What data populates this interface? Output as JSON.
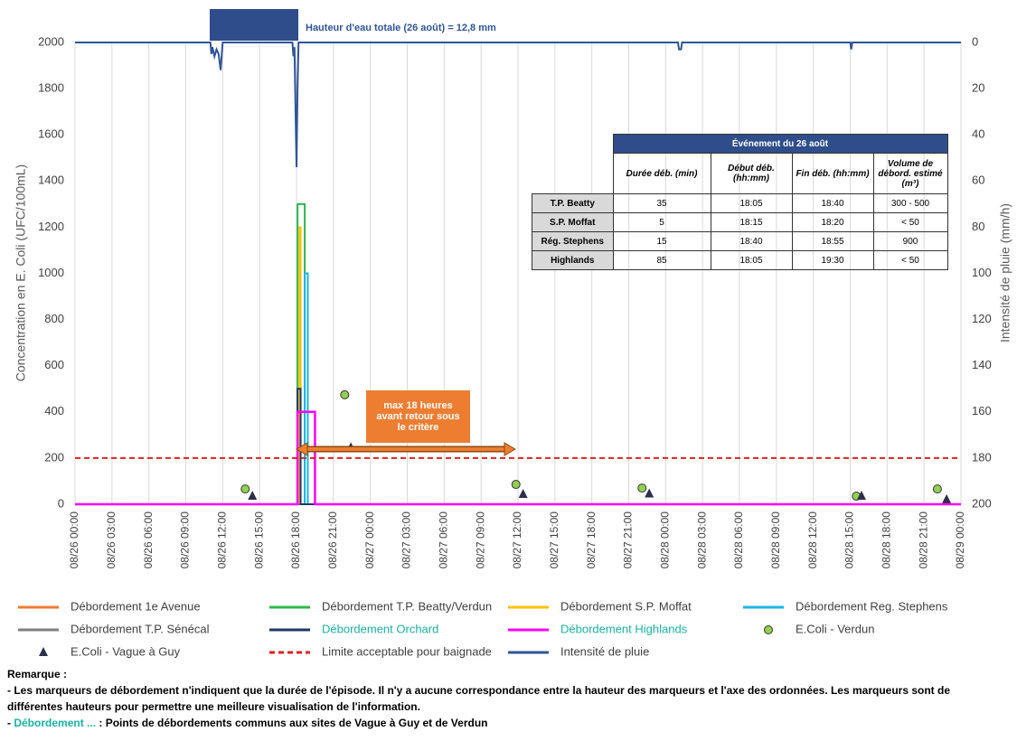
{
  "chart_data": {
    "type": "line",
    "annotation": "Hauteur d'eau totale (26 août) = 12,8 mm",
    "callout": "max 18 heures avant retour sous le critère",
    "y_label": "Concentration en E. Coli (UFC/100mL)",
    "y2_label": "Intensité de pluie (mm/h)",
    "xlim": [
      "08/26 00:00",
      "08/29 00:00"
    ],
    "xticks": [
      "08/26 00:00",
      "08/26 03:00",
      "08/26 06:00",
      "08/26 09:00",
      "08/26 12:00",
      "08/26 15:00",
      "08/26 18:00",
      "08/26 21:00",
      "08/27 00:00",
      "08/27 03:00",
      "08/27 06:00",
      "08/27 09:00",
      "08/27 12:00",
      "08/27 15:00",
      "08/27 18:00",
      "08/27 21:00",
      "08/28 00:00",
      "08/28 03:00",
      "08/28 06:00",
      "08/28 09:00",
      "08/28 12:00",
      "08/28 15:00",
      "08/28 18:00",
      "08/28 21:00",
      "08/29 00:00"
    ],
    "ylim": [
      0,
      2000
    ],
    "yticks": [
      0,
      200,
      400,
      600,
      800,
      1000,
      1200,
      1400,
      1600,
      1800,
      2000
    ],
    "y2lim": [
      200,
      0
    ],
    "y2ticks": [
      0,
      20,
      40,
      60,
      80,
      100,
      120,
      140,
      160,
      180,
      200
    ],
    "grid": "x",
    "series": [
      {
        "name": "Débordement 1e Avenue",
        "color": "#ed7d31",
        "x": [
          "08/26 00:00",
          "08/29 00:00"
        ],
        "values": [
          0,
          0
        ]
      },
      {
        "name": "Débordement T.P. Beatty/Verdun",
        "color": "#2db84c",
        "x": [
          "08/26 00:00",
          "08/26 18:05",
          "08/26 18:05",
          "08/26 18:40",
          "08/26 18:40",
          "08/29 00:00"
        ],
        "values": [
          0,
          0,
          1300,
          1300,
          0,
          0
        ]
      },
      {
        "name": "Débordement S.P. Moffat",
        "color": "#ffc000",
        "x": [
          "08/26 00:00",
          "08/26 18:15",
          "08/26 18:15",
          "08/26 18:20",
          "08/26 18:20",
          "08/29 00:00"
        ],
        "values": [
          0,
          0,
          1200,
          1200,
          0,
          0
        ]
      },
      {
        "name": "Débordement Reg. Stephens",
        "color": "#1fb4e6",
        "x": [
          "08/26 00:00",
          "08/26 18:40",
          "08/26 18:40",
          "08/26 18:55",
          "08/26 18:55",
          "08/29 00:00"
        ],
        "values": [
          0,
          0,
          1000,
          1000,
          0,
          0
        ]
      },
      {
        "name": "Débordement T.P. Sénécal",
        "color": "#7f7f7f",
        "x": [
          "08/26 00:00",
          "08/29 00:00"
        ],
        "values": [
          0,
          0
        ]
      },
      {
        "name": "Débordement Orchard",
        "color": "#203864",
        "label_color": "#17b3a3",
        "x": [
          "08/26 00:00",
          "08/26 18:05",
          "08/26 18:05",
          "08/26 18:20",
          "08/26 18:20",
          "08/29 00:00"
        ],
        "values": [
          0,
          0,
          500,
          500,
          0,
          0
        ]
      },
      {
        "name": "Débordement Highlands",
        "color": "#ff00ff",
        "label_color": "#17b3a3",
        "x": [
          "08/26 00:00",
          "08/26 18:05",
          "08/26 18:05",
          "08/26 19:30",
          "08/26 19:30",
          "08/29 00:00"
        ],
        "values": [
          0,
          0,
          400,
          400,
          0,
          0
        ]
      },
      {
        "name": "E.Coli - Verdun",
        "type": "scatter",
        "marker": "circle",
        "color": "#92d050",
        "x": [
          "08/26 13:50",
          "08/26 21:55",
          "08/27 11:50",
          "08/27 22:05",
          "08/28 15:30",
          "08/28 22:05"
        ],
        "values": [
          66,
          474,
          86,
          70,
          35,
          66
        ]
      },
      {
        "name": "E.Coli - Vague à Guy",
        "type": "scatter",
        "marker": "triangle",
        "color": "#2e2e4e",
        "x": [
          "08/26 14:25",
          "08/26 22:25",
          "08/27 12:25",
          "08/27 22:40",
          "08/28 15:55",
          "08/28 22:50"
        ],
        "values": [
          35,
          245,
          43,
          45,
          35,
          20
        ]
      },
      {
        "name": "Limite acceptable pour baignade",
        "color": "#e02020",
        "dash": true,
        "x": [
          "08/26 00:00",
          "08/29 00:00"
        ],
        "values": [
          200,
          200
        ]
      },
      {
        "name": "Intensité de pluie",
        "color": "#2f5597",
        "axis": "y2",
        "x": [
          "08/26 00:00",
          "08/26 11:00",
          "08/26 11:05",
          "08/26 11:10",
          "08/26 11:20",
          "08/26 11:30",
          "08/26 11:40",
          "08/26 11:50",
          "08/26 12:00",
          "08/26 17:40",
          "08/26 17:45",
          "08/26 17:50",
          "08/26 18:00",
          "08/26 18:05",
          "08/26 18:10",
          "08/28 01:00",
          "08/28 01:05",
          "08/28 01:15",
          "08/28 01:20",
          "08/28 15:00",
          "08/28 15:05",
          "08/28 15:10",
          "08/29 00:00"
        ],
        "values": [
          0,
          0,
          5,
          2,
          6,
          3,
          5,
          12,
          0,
          0,
          6,
          2,
          54,
          20,
          0,
          0,
          3,
          3,
          0,
          0,
          3,
          0,
          0
        ]
      }
    ]
  },
  "table": {
    "title": "Événement du 26 août",
    "columns": [
      "Durée déb. (min)",
      "Début déb. (hh:mm)",
      "Fin déb. (hh:mm)",
      "Volume de débord. estimé (m³)"
    ],
    "rows": [
      [
        "T.P. Beatty",
        "35",
        "18:05",
        "18:40",
        "300 - 500"
      ],
      [
        "S.P. Moffat",
        "5",
        "18:15",
        "18:20",
        "< 50"
      ],
      [
        "Rég. Stephens",
        "15",
        "18:40",
        "18:55",
        "900"
      ],
      [
        "Highlands",
        "85",
        "18:05",
        "19:30",
        "< 50"
      ]
    ]
  },
  "notes": {
    "title": "Remarque :",
    "line1": "- Les marqueurs de débordement n'indiquent que la durée de l'épisode. Il n'y a aucune correspondance entre la hauteur des marqueurs et l'axe des ordonnées. Les marqueurs sont de différentes hauteurs pour permettre une meilleure visualisation de l'information.",
    "line2_prefix": "- ",
    "line2_highlight": "Débordement ...",
    "line2_rest": " : Points de débordements communs aux sites de Vague à Guy et de Verdun"
  }
}
